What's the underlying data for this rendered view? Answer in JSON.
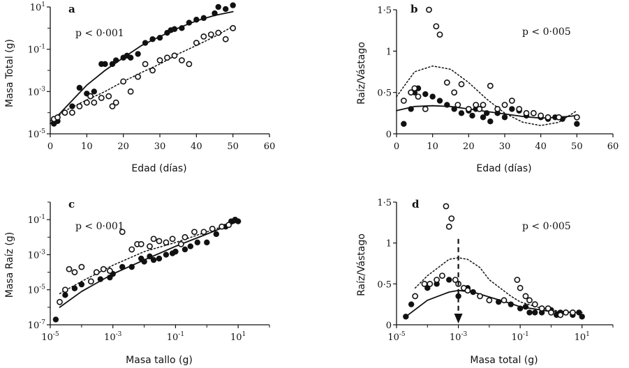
{
  "chart_data": [
    {
      "panel": "a",
      "type": "scatter",
      "annotation": "p < 0·001",
      "xlabel": "Edad (días)",
      "ylabel": "Masa Total (g)",
      "xscale": "linear",
      "yscale": "log",
      "xlim": [
        0,
        60
      ],
      "ylim": [
        1e-05,
        10
      ],
      "xticks": [
        0,
        10,
        20,
        30,
        40,
        50,
        60
      ],
      "xtick_labels": [
        "0",
        "10",
        "20",
        "30",
        "40",
        "50",
        "60"
      ],
      "yticks": [
        1e-05,
        0.001,
        0.1,
        10
      ],
      "ytick_labels": [
        {
          "b": "10",
          "e": "-5"
        },
        {
          "b": "10",
          "e": "-3"
        },
        {
          "b": "10",
          "e": "-1"
        },
        {
          "b": "10",
          "e": "1"
        }
      ],
      "series": [
        {
          "marker": "filled",
          "x": [
            1,
            2,
            4,
            6,
            8,
            10,
            12,
            14,
            15,
            17,
            18,
            20,
            21,
            22,
            24,
            26,
            28,
            30,
            32,
            33,
            34,
            36,
            38,
            40,
            42,
            45,
            46,
            48,
            50
          ],
          "y": [
            3e-05,
            4e-05,
            0.0001,
            0.0002,
            0.0015,
            0.0008,
            0.001,
            0.02,
            0.02,
            0.02,
            0.03,
            0.04,
            0.05,
            0.04,
            0.06,
            0.2,
            0.3,
            0.35,
            0.6,
            0.8,
            0.9,
            1,
            1.8,
            2.5,
            3,
            5,
            10,
            8,
            12
          ]
        },
        {
          "marker": "open",
          "x": [
            1,
            2,
            4,
            6,
            8,
            10,
            11,
            12,
            14,
            16,
            17,
            18,
            20,
            22,
            24,
            26,
            28,
            30,
            32,
            34,
            36,
            38,
            40,
            42,
            44,
            46,
            48,
            50
          ],
          "y": [
            5e-05,
            6e-05,
            0.0001,
            0.0001,
            0.0002,
            0.0003,
            0.0006,
            0.0003,
            0.0005,
            0.0006,
            0.0002,
            0.0003,
            0.003,
            0.001,
            0.005,
            0.02,
            0.01,
            0.03,
            0.04,
            0.05,
            0.03,
            0.02,
            0.2,
            0.4,
            0.5,
            0.6,
            0.3,
            1
          ]
        },
        {
          "style": "solid",
          "x": [
            0,
            5,
            10,
            15,
            20,
            25,
            30,
            35,
            40,
            45,
            50
          ],
          "y": [
            3e-05,
            0.00025,
            0.002,
            0.01,
            0.04,
            0.15,
            0.4,
            1,
            2.2,
            4,
            6
          ]
        },
        {
          "style": "dotted",
          "x": [
            0,
            5,
            10,
            15,
            20,
            25,
            30,
            35,
            40,
            45,
            50
          ],
          "y": [
            4e-05,
            0.00015,
            0.0004,
            0.001,
            0.003,
            0.008,
            0.02,
            0.06,
            0.15,
            0.4,
            1.2
          ]
        }
      ]
    },
    {
      "panel": "b",
      "type": "scatter",
      "annotation": "p < 0·005",
      "xlabel": "Edad (días)",
      "ylabel": "Raíz/Vástago",
      "xscale": "linear",
      "yscale": "linear",
      "xlim": [
        0,
        60
      ],
      "ylim": [
        0,
        1.5
      ],
      "xticks": [
        0,
        10,
        20,
        30,
        40,
        50,
        60
      ],
      "xtick_labels": [
        "0",
        "10",
        "20",
        "30",
        "40",
        "50",
        "60"
      ],
      "yticks": [
        0,
        0.5,
        1,
        1.5
      ],
      "ytick_labels": [
        "0",
        "0·5",
        "1",
        "1·5"
      ],
      "series": [
        {
          "marker": "filled",
          "x": [
            2,
            4,
            5,
            6,
            8,
            10,
            12,
            14,
            16,
            18,
            20,
            21,
            22,
            24,
            25,
            26,
            28,
            30,
            32,
            34,
            36,
            38,
            40,
            42,
            44,
            46,
            50
          ],
          "y": [
            0.12,
            0.3,
            0.5,
            0.55,
            0.48,
            0.45,
            0.4,
            0.35,
            0.3,
            0.25,
            0.28,
            0.22,
            0.3,
            0.2,
            0.25,
            0.15,
            0.25,
            0.2,
            0.3,
            0.28,
            0.22,
            0.25,
            0.2,
            0.18,
            0.2,
            0.18,
            0.12
          ]
        },
        {
          "marker": "open",
          "x": [
            2,
            4,
            5,
            6,
            8,
            9,
            11,
            12,
            14,
            16,
            17,
            18,
            20,
            22,
            23,
            24,
            26,
            28,
            30,
            32,
            34,
            36,
            38,
            40,
            42,
            45,
            50
          ],
          "y": [
            0.4,
            0.5,
            0.55,
            0.45,
            0.3,
            1.5,
            1.3,
            1.2,
            0.62,
            0.5,
            0.35,
            0.6,
            0.3,
            0.35,
            0.3,
            0.35,
            0.58,
            0.3,
            0.35,
            0.4,
            0.3,
            0.25,
            0.25,
            0.22,
            0.2,
            0.2,
            0.2
          ]
        },
        {
          "style": "solid",
          "x": [
            0,
            5,
            10,
            15,
            20,
            25,
            30,
            35,
            40,
            45,
            50
          ],
          "y": [
            0.28,
            0.33,
            0.34,
            0.33,
            0.3,
            0.27,
            0.24,
            0.21,
            0.19,
            0.2,
            0.22
          ]
        },
        {
          "style": "dotted",
          "x": [
            0,
            5,
            10,
            15,
            20,
            25,
            30,
            35,
            40,
            45,
            50
          ],
          "y": [
            0.45,
            0.75,
            0.82,
            0.78,
            0.62,
            0.42,
            0.25,
            0.14,
            0.1,
            0.14,
            0.28
          ]
        }
      ]
    },
    {
      "panel": "c",
      "type": "scatter",
      "annotation": "p < 0·001",
      "xlabel": "Masa tallo (g)",
      "ylabel": "Masa Raíz (g)",
      "xscale": "log",
      "yscale": "log",
      "xlim": [
        1e-05,
        100
      ],
      "ylim": [
        1e-07,
        1
      ],
      "xticks": [
        1e-05,
        0.001,
        0.1,
        10
      ],
      "xtick_labels": [
        {
          "b": "10",
          "e": "-5"
        },
        {
          "b": "10",
          "e": "-3"
        },
        {
          "b": "10",
          "e": "-1"
        },
        {
          "b": "10",
          "e": "1"
        }
      ],
      "yticks": [
        1e-07,
        1e-05,
        0.001,
        0.1
      ],
      "ytick_labels": [
        {
          "b": "10",
          "e": "-7"
        },
        {
          "b": "10",
          "e": "-5"
        },
        {
          "b": "10",
          "e": "-3"
        },
        {
          "b": "10",
          "e": "-1"
        }
      ],
      "series": [
        {
          "marker": "filled",
          "x": [
            1.5e-05,
            3e-05,
            6e-05,
            0.0001,
            0.0002,
            0.0004,
            0.0008,
            0.001,
            0.002,
            0.004,
            0.008,
            0.01,
            0.015,
            0.02,
            0.03,
            0.05,
            0.08,
            0.1,
            0.2,
            0.3,
            0.5,
            1,
            2,
            4,
            6,
            8,
            10
          ],
          "y": [
            2e-07,
            5e-06,
            1.2e-05,
            2e-05,
            3e-05,
            4e-05,
            5e-05,
            8e-05,
            0.0002,
            0.0002,
            0.0006,
            0.0004,
            0.0008,
            0.0005,
            0.0006,
            0.001,
            0.0012,
            0.0015,
            0.002,
            0.003,
            0.005,
            0.005,
            0.015,
            0.04,
            0.08,
            0.1,
            0.08
          ]
        },
        {
          "marker": "open",
          "x": [
            2e-05,
            3e-05,
            4e-05,
            6e-05,
            0.0001,
            0.0002,
            0.0003,
            0.0005,
            0.0008,
            0.002,
            0.004,
            0.006,
            0.008,
            0.015,
            0.02,
            0.03,
            0.05,
            0.08,
            0.15,
            0.2,
            0.4,
            0.8,
            1.5,
            3,
            5
          ],
          "y": [
            2e-06,
            1e-05,
            0.00015,
            0.0001,
            0.0002,
            3e-05,
            0.0001,
            0.00015,
            0.00012,
            0.02,
            0.002,
            0.004,
            0.004,
            0.003,
            0.008,
            0.006,
            0.005,
            0.008,
            0.004,
            0.01,
            0.02,
            0.02,
            0.03,
            0.04,
            0.05
          ]
        },
        {
          "style": "solid",
          "x": [
            2e-05,
            0.0001,
            0.001,
            0.01,
            0.1,
            1,
            10
          ],
          "y": [
            1e-06,
            8e-06,
            8e-05,
            0.0005,
            0.003,
            0.015,
            0.08
          ]
        },
        {
          "style": "dotted",
          "x": [
            2e-05,
            0.0001,
            0.001,
            0.01,
            0.1,
            1,
            10
          ],
          "y": [
            6e-06,
            3e-05,
            0.00025,
            0.0015,
            0.005,
            0.02,
            0.08
          ]
        }
      ]
    },
    {
      "panel": "d",
      "type": "scatter",
      "annotation": "p < 0·005",
      "xlabel": "Masa total (g)",
      "ylabel": "Raíz/Vástago",
      "xscale": "log",
      "yscale": "linear",
      "xlim": [
        1e-05,
        100
      ],
      "ylim": [
        0,
        1.5
      ],
      "xticks": [
        1e-05,
        0.001,
        0.1,
        10
      ],
      "xtick_labels": [
        {
          "b": "10",
          "e": "-5"
        },
        {
          "b": "10",
          "e": "-3"
        },
        {
          "b": "10",
          "e": "-1"
        },
        {
          "b": "10",
          "e": "1"
        }
      ],
      "yticks": [
        0,
        0.5,
        1,
        1.5
      ],
      "ytick_labels": [
        "0",
        "0·5",
        "1",
        "1·5"
      ],
      "arrow_x": 0.001,
      "series": [
        {
          "marker": "filled",
          "x": [
            2e-05,
            3e-05,
            0.0001,
            0.0002,
            0.0005,
            0.001,
            0.002,
            0.003,
            0.005,
            0.01,
            0.02,
            0.05,
            0.1,
            0.15,
            0.2,
            0.3,
            0.5,
            1,
            1.5,
            2,
            3,
            5,
            8,
            10
          ],
          "y": [
            0.1,
            0.25,
            0.45,
            0.5,
            0.55,
            0.35,
            0.45,
            0.4,
            0.35,
            0.3,
            0.28,
            0.25,
            0.2,
            0.22,
            0.15,
            0.15,
            0.15,
            0.18,
            0.12,
            0.15,
            0.15,
            0.12,
            0.15,
            0.1
          ]
        },
        {
          "marker": "open",
          "x": [
            4e-05,
            8e-05,
            0.00012,
            0.0002,
            0.0003,
            0.0004,
            0.0005,
            0.0006,
            0.0008,
            0.001,
            0.0015,
            0.002,
            0.005,
            0.01,
            0.03,
            0.08,
            0.1,
            0.15,
            0.2,
            0.3,
            0.5,
            0.8,
            1,
            2,
            3,
            5
          ],
          "y": [
            0.35,
            0.5,
            0.5,
            0.55,
            0.6,
            1.45,
            1.2,
            1.3,
            0.55,
            0.5,
            0.45,
            0.42,
            0.35,
            0.3,
            0.3,
            0.55,
            0.45,
            0.35,
            0.3,
            0.25,
            0.2,
            0.2,
            0.15,
            0.12,
            0.15,
            0.15
          ]
        },
        {
          "style": "solid",
          "x": [
            2e-05,
            0.0001,
            0.0005,
            0.001,
            0.003,
            0.01,
            0.05,
            0.1,
            0.5,
            1,
            5,
            10
          ],
          "y": [
            0.1,
            0.3,
            0.4,
            0.42,
            0.4,
            0.34,
            0.26,
            0.22,
            0.18,
            0.16,
            0.15,
            0.15
          ]
        },
        {
          "style": "dotted",
          "x": [
            4e-05,
            0.0001,
            0.0005,
            0.001,
            0.002,
            0.005,
            0.01,
            0.05,
            0.1,
            0.5,
            1,
            5
          ],
          "y": [
            0.45,
            0.6,
            0.8,
            0.82,
            0.8,
            0.7,
            0.55,
            0.35,
            0.28,
            0.2,
            0.18,
            0.15
          ]
        }
      ]
    }
  ]
}
